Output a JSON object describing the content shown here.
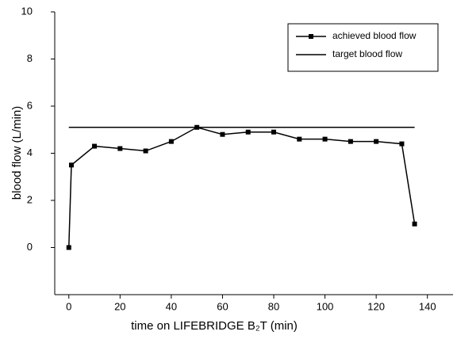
{
  "chart_data": {
    "type": "line",
    "x_label": "time on LIFEBRIDGE B₂T (min)",
    "y_label": "blood flow (L/min)",
    "xlim": [
      -5.5,
      150
    ],
    "ylim": [
      -2,
      10
    ],
    "xticks": [
      0,
      20,
      40,
      60,
      80,
      100,
      120,
      140
    ],
    "yticks": [
      0,
      2,
      4,
      6,
      8,
      10
    ],
    "legend": "upper right",
    "series": [
      {
        "name": "achieved blood flow",
        "color": "#000000",
        "marker": "square",
        "x": [
          0,
          1,
          10,
          20,
          30,
          40,
          50,
          60,
          70,
          80,
          90,
          100,
          110,
          120,
          130,
          135
        ],
        "values": [
          0,
          3.5,
          4.3,
          4.2,
          4.1,
          4.5,
          5.1,
          4.8,
          4.9,
          4.9,
          4.6,
          4.6,
          4.5,
          4.5,
          4.4,
          1.0
        ]
      },
      {
        "name": "target blood flow",
        "color": "#000000",
        "marker": "none",
        "x": [
          0,
          135
        ],
        "values": [
          5.1,
          5.1
        ]
      }
    ]
  }
}
